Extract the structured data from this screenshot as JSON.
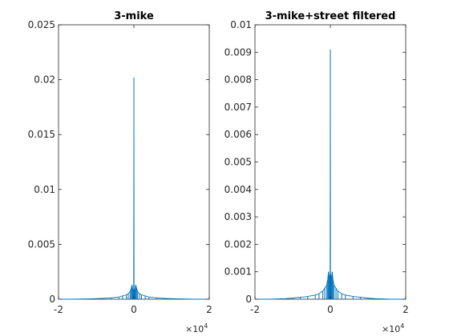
{
  "colors": {
    "series": "#0072BD",
    "axis": "#262626",
    "background": "#ffffff"
  },
  "chart_data": [
    {
      "type": "line",
      "title": "3-mike",
      "xlabel": "",
      "ylabel": "",
      "xlim": [
        -20000,
        20000
      ],
      "ylim": [
        0,
        0.025
      ],
      "xticks": [
        -20000,
        0,
        20000
      ],
      "xtick_labels": [
        "-2",
        "0",
        "2"
      ],
      "x_exponent_label": "×10",
      "x_exponent": "4",
      "yticks": [
        0,
        0.005,
        0.01,
        0.015,
        0.02,
        0.025
      ],
      "ytick_labels": [
        "0",
        "0.005",
        "0.01",
        "0.015",
        "0.02",
        "0.025"
      ],
      "grid": false,
      "series": [
        {
          "x": [
            -20000,
            -16000,
            -12000,
            -10000,
            -8000,
            -6000,
            -4000,
            -3000,
            -2000,
            -1500,
            -1000,
            -700,
            -500,
            -300,
            -200,
            -100,
            -50,
            0,
            50,
            100,
            200,
            300,
            500,
            700,
            1000,
            1500,
            2000,
            3000,
            4000,
            6000,
            8000,
            10000,
            12000,
            16000,
            20000
          ],
          "y": [
            0,
            0,
            3e-05,
            5e-05,
            8e-05,
            0.00012,
            0.0002,
            0.0003,
            0.0004,
            0.0005,
            0.0007,
            0.001,
            0.0013,
            0.0009,
            0.0006,
            0.0009,
            0.0004,
            0.0202,
            0.0004,
            0.0009,
            0.0006,
            0.0009,
            0.0013,
            0.001,
            0.0007,
            0.0005,
            0.0004,
            0.0003,
            0.0002,
            0.00012,
            8e-05,
            5e-05,
            3e-05,
            0,
            0
          ]
        }
      ]
    },
    {
      "type": "line",
      "title": "3-mike+street filtered",
      "xlabel": "",
      "ylabel": "",
      "xlim": [
        -20000,
        20000
      ],
      "ylim": [
        0,
        0.01
      ],
      "xticks": [
        -20000,
        0,
        20000
      ],
      "xtick_labels": [
        "-2",
        "0",
        "2"
      ],
      "x_exponent_label": "×10",
      "x_exponent": "4",
      "yticks": [
        0,
        0.001,
        0.002,
        0.003,
        0.004,
        0.005,
        0.006,
        0.007,
        0.008,
        0.009,
        0.01
      ],
      "ytick_labels": [
        "0",
        "0.001",
        "0.002",
        "0.003",
        "0.004",
        "0.005",
        "0.006",
        "0.007",
        "0.008",
        "0.009",
        "0.01"
      ],
      "grid": false,
      "series": [
        {
          "x": [
            -20000,
            -16000,
            -12000,
            -10000,
            -8000,
            -6000,
            -4000,
            -3000,
            -2000,
            -1500,
            -1000,
            -700,
            -500,
            -300,
            -200,
            -100,
            -50,
            0,
            50,
            100,
            200,
            300,
            500,
            700,
            1000,
            1500,
            2000,
            3000,
            4000,
            6000,
            8000,
            10000,
            12000,
            16000,
            20000
          ],
          "y": [
            0,
            0,
            2e-05,
            4e-05,
            7e-05,
            0.0001,
            0.00015,
            0.0002,
            0.0003,
            0.0004,
            0.0005,
            0.0007,
            0.001,
            0.0008,
            0.0006,
            0.0009,
            0.0005,
            0.0091,
            0.0005,
            0.0009,
            0.0006,
            0.0008,
            0.001,
            0.0007,
            0.0005,
            0.0004,
            0.0003,
            0.0002,
            0.00015,
            0.0001,
            7e-05,
            4e-05,
            2e-05,
            0,
            0
          ]
        }
      ]
    }
  ]
}
